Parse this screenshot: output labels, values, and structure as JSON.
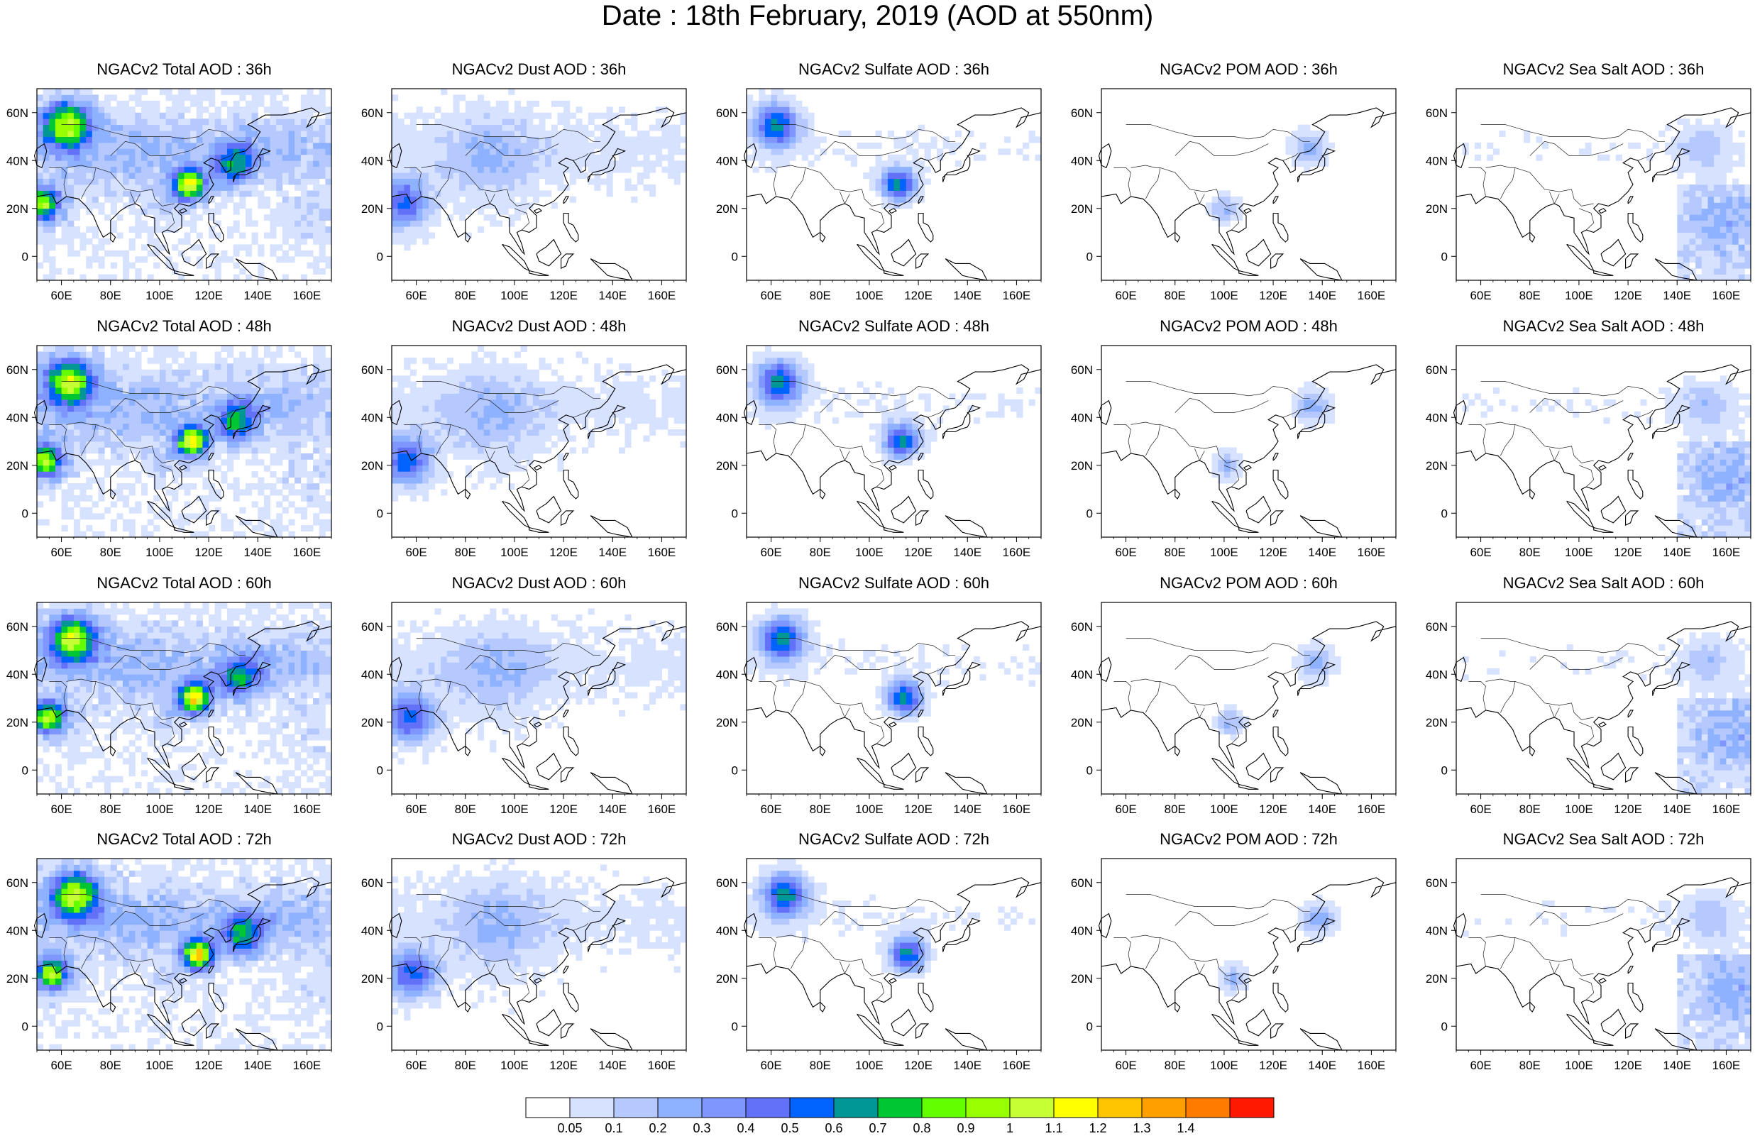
{
  "figure": {
    "title": "Date : 18th February, 2019 (AOD at 550nm)"
  },
  "panels": [
    {
      "row": 0,
      "col": 0,
      "title": "NGACv2 Total AOD : 36h",
      "species": "total",
      "hour": 36
    },
    {
      "row": 0,
      "col": 1,
      "title": "NGACv2 Dust AOD : 36h",
      "species": "dust",
      "hour": 36
    },
    {
      "row": 0,
      "col": 2,
      "title": "NGACv2 Sulfate AOD : 36h",
      "species": "sulfate",
      "hour": 36
    },
    {
      "row": 0,
      "col": 3,
      "title": "NGACv2 POM AOD : 36h",
      "species": "pom",
      "hour": 36
    },
    {
      "row": 0,
      "col": 4,
      "title": "NGACv2 Sea Salt AOD : 36h",
      "species": "seasalt",
      "hour": 36
    },
    {
      "row": 1,
      "col": 0,
      "title": "NGACv2 Total AOD : 48h",
      "species": "total",
      "hour": 48
    },
    {
      "row": 1,
      "col": 1,
      "title": "NGACv2 Dust AOD : 48h",
      "species": "dust",
      "hour": 48
    },
    {
      "row": 1,
      "col": 2,
      "title": "NGACv2 Sulfate AOD : 48h",
      "species": "sulfate",
      "hour": 48
    },
    {
      "row": 1,
      "col": 3,
      "title": "NGACv2 POM AOD : 48h",
      "species": "pom",
      "hour": 48
    },
    {
      "row": 1,
      "col": 4,
      "title": "NGACv2 Sea Salt AOD : 48h",
      "species": "seasalt",
      "hour": 48
    },
    {
      "row": 2,
      "col": 0,
      "title": "NGACv2 Total AOD : 60h",
      "species": "total",
      "hour": 60
    },
    {
      "row": 2,
      "col": 1,
      "title": "NGACv2 Dust AOD : 60h",
      "species": "dust",
      "hour": 60
    },
    {
      "row": 2,
      "col": 2,
      "title": "NGACv2 Sulfate AOD : 60h",
      "species": "sulfate",
      "hour": 60
    },
    {
      "row": 2,
      "col": 3,
      "title": "NGACv2 POM AOD : 60h",
      "species": "pom",
      "hour": 60
    },
    {
      "row": 2,
      "col": 4,
      "title": "NGACv2 Sea Salt AOD : 60h",
      "species": "seasalt",
      "hour": 60
    },
    {
      "row": 3,
      "col": 0,
      "title": "NGACv2 Total AOD : 72h",
      "species": "total",
      "hour": 72
    },
    {
      "row": 3,
      "col": 1,
      "title": "NGACv2 Dust AOD : 72h",
      "species": "dust",
      "hour": 72
    },
    {
      "row": 3,
      "col": 2,
      "title": "NGACv2 Sulfate AOD : 72h",
      "species": "sulfate",
      "hour": 72
    },
    {
      "row": 3,
      "col": 3,
      "title": "NGACv2 POM AOD : 72h",
      "species": "pom",
      "hour": 72
    },
    {
      "row": 3,
      "col": 4,
      "title": "NGACv2 Sea Salt  AOD : 72h",
      "species": "seasalt",
      "hour": 72
    }
  ],
  "axes": {
    "lon_range": [
      50,
      170
    ],
    "lat_range": [
      -10,
      70
    ],
    "x_ticks": [
      60,
      80,
      100,
      120,
      140,
      160
    ],
    "x_tick_labels": [
      "60E",
      "80E",
      "100E",
      "120E",
      "140E",
      "160E"
    ],
    "y_ticks": [
      0,
      20,
      40,
      60
    ],
    "y_tick_labels": [
      "0",
      "20N",
      "40N",
      "60N"
    ]
  },
  "colorbar": {
    "labels": [
      "0.05",
      "0.1",
      "0.2",
      "0.3",
      "0.4",
      "0.5",
      "0.6",
      "0.7",
      "0.8",
      "0.9",
      "1",
      "1.1",
      "1.2",
      "1.3",
      "1.4"
    ],
    "colors": [
      "#ffffff",
      "#d6e2ff",
      "#b5c9ff",
      "#8eb2ff",
      "#7f96ff",
      "#6370f8",
      "#0063ff",
      "#009696",
      "#00c633",
      "#63ff00",
      "#96ff00",
      "#c6ff33",
      "#ffff00",
      "#ffc600",
      "#ffa000",
      "#ff7c00",
      "#ff1900"
    ]
  },
  "features": {
    "plumes": [
      {
        "species": "total",
        "lon": 112,
        "lat": 30,
        "level": 9,
        "spread": 6
      },
      {
        "species": "total",
        "lon": 130,
        "lat": 38,
        "level": 6,
        "spread": 8
      },
      {
        "species": "total",
        "lon": 62,
        "lat": 55,
        "level": 7,
        "spread": 10
      },
      {
        "species": "total",
        "lon": 52,
        "lat": 22,
        "level": 8,
        "spread": 6
      },
      {
        "species": "dust",
        "lon": 55,
        "lat": 22,
        "level": 6,
        "spread": 10
      },
      {
        "species": "dust",
        "lon": 90,
        "lat": 40,
        "level": 2,
        "spread": 20
      },
      {
        "species": "sulfate",
        "lon": 112,
        "lat": 30,
        "level": 7,
        "spread": 7
      },
      {
        "species": "sulfate",
        "lon": 62,
        "lat": 55,
        "level": 7,
        "spread": 9
      },
      {
        "species": "pom",
        "lon": 135,
        "lat": 45,
        "level": 3,
        "spread": 7
      },
      {
        "species": "pom",
        "lon": 100,
        "lat": 20,
        "level": 3,
        "spread": 6
      },
      {
        "species": "seasalt",
        "lon": 160,
        "lat": 15,
        "level": 2,
        "spread": 14
      },
      {
        "species": "seasalt",
        "lon": 150,
        "lat": 45,
        "level": 2,
        "spread": 10
      }
    ]
  }
}
